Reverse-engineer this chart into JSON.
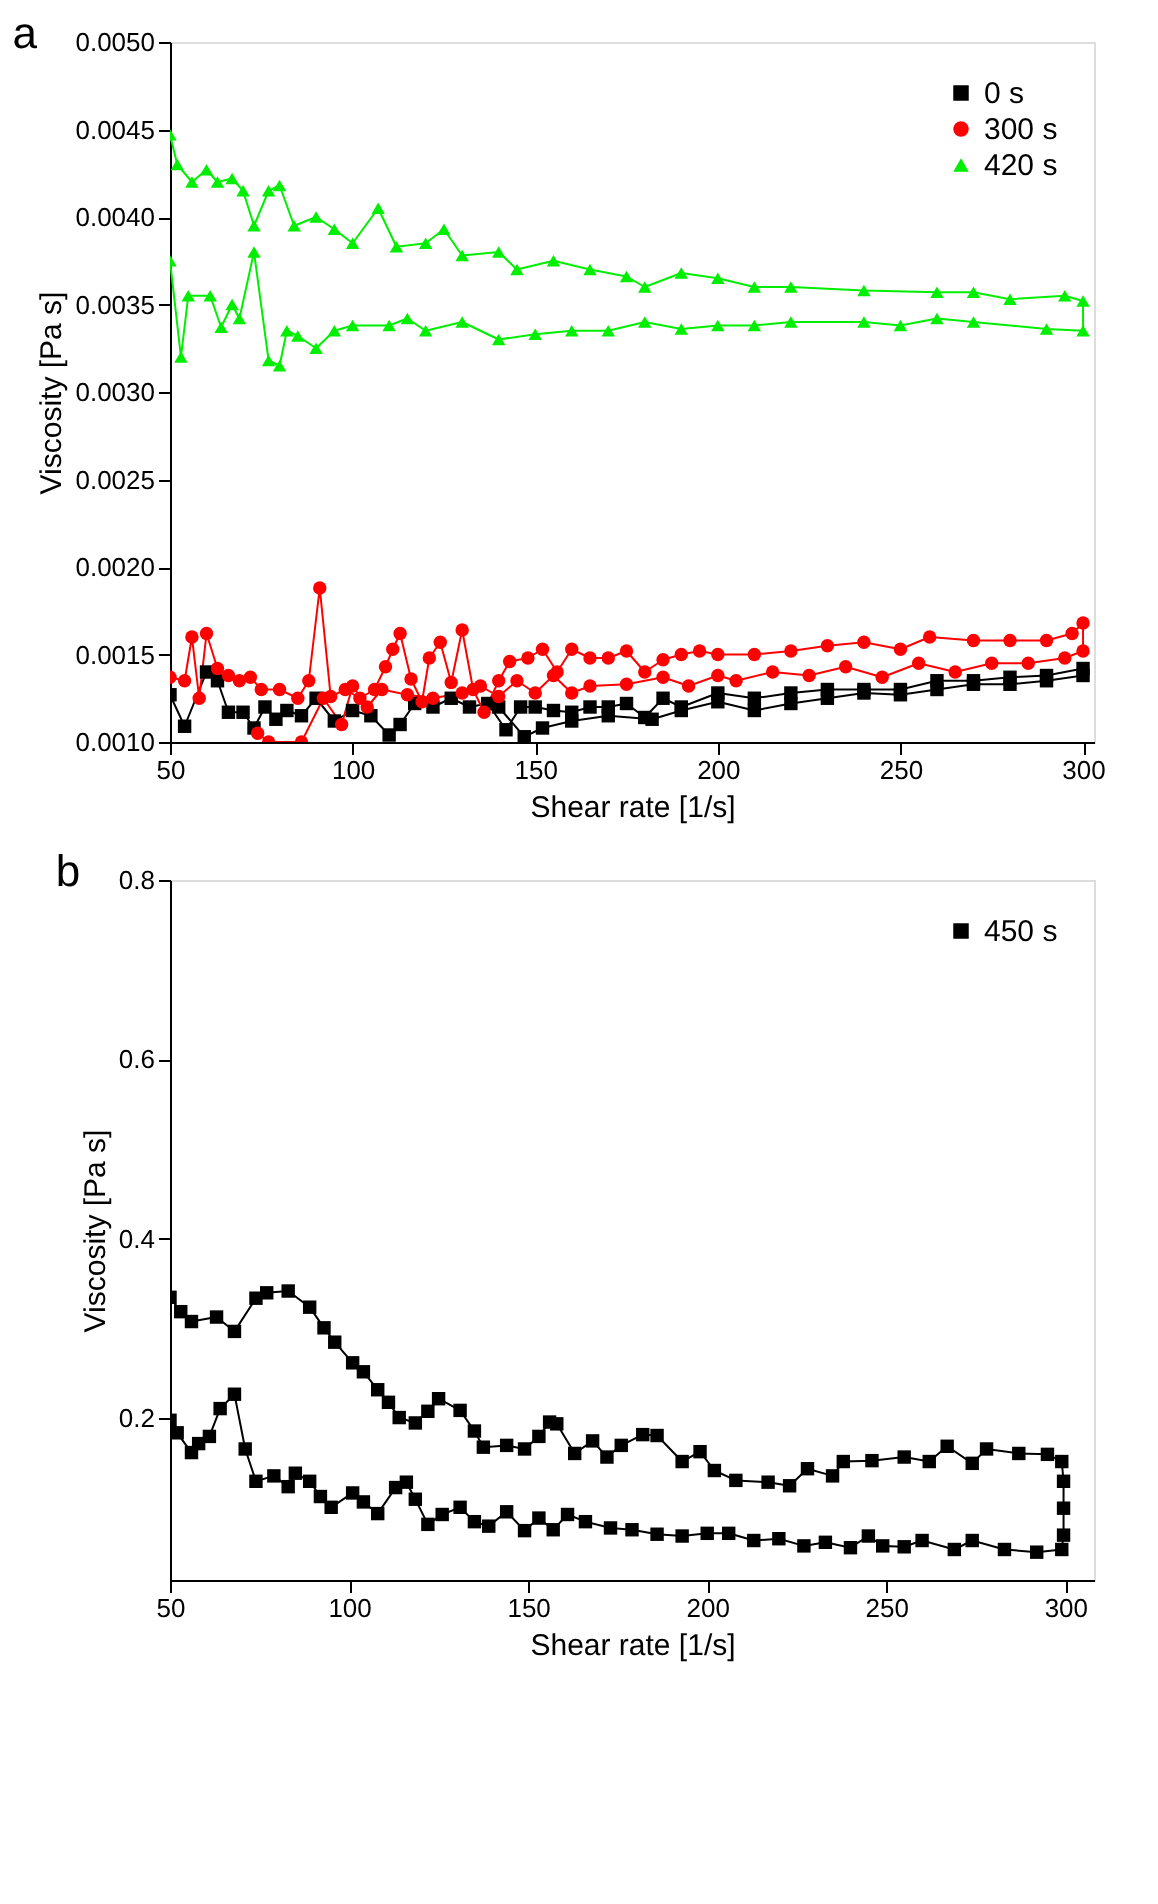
{
  "chart_data": [
    {
      "type": "line",
      "title": "a",
      "xlabel": "Shear rate [1/s]",
      "ylabel": "Viscosity [Pa s]",
      "xlim": [
        50,
        303
      ],
      "ylim": [
        0.001,
        0.005
      ],
      "xticks": [
        50,
        100,
        150,
        200,
        250,
        300
      ],
      "yticks": [
        {
          "value": 0.001,
          "label": "0.0010"
        },
        {
          "value": 0.0015,
          "label": "0.0015"
        },
        {
          "value": 0.002,
          "label": "0.0020"
        },
        {
          "value": 0.0025,
          "label": "0.0025"
        },
        {
          "value": 0.003,
          "label": "0.0030"
        },
        {
          "value": 0.0035,
          "label": "0.0035"
        },
        {
          "value": 0.004,
          "label": "0.0040"
        },
        {
          "value": 0.0045,
          "label": "0.0045"
        },
        {
          "value": 0.005,
          "label": "0.0050"
        }
      ],
      "legend": "top right",
      "grid": false,
      "line_style": "solid",
      "series": [
        {
          "name": "0 s",
          "color": "#000000",
          "marker": "square",
          "x": [
            50,
            54,
            60,
            63,
            66,
            70,
            73,
            76,
            79,
            82,
            86,
            90,
            95,
            100,
            105,
            110,
            113,
            117,
            122,
            127,
            132,
            137,
            142,
            146,
            150,
            155,
            160,
            165,
            170,
            175,
            180,
            185,
            190,
            200,
            210,
            220,
            230,
            240,
            250,
            260,
            270,
            280,
            290,
            300,
            300,
            290,
            280,
            270,
            260,
            250,
            240,
            230,
            220,
            210,
            200,
            190,
            182,
            170,
            160,
            152,
            147,
            140
          ],
          "values": [
            0.00127,
            0.00109,
            0.0014,
            0.00135,
            0.00117,
            0.00117,
            0.00108,
            0.0012,
            0.00113,
            0.00118,
            0.00115,
            0.00125,
            0.00112,
            0.00118,
            0.00115,
            0.00104,
            0.0011,
            0.00122,
            0.0012,
            0.00125,
            0.0012,
            0.00122,
            0.00107,
            0.0012,
            0.0012,
            0.00118,
            0.00117,
            0.0012,
            0.0012,
            0.00122,
            0.00114,
            0.00125,
            0.0012,
            0.00128,
            0.00125,
            0.00128,
            0.0013,
            0.0013,
            0.0013,
            0.00135,
            0.00135,
            0.00137,
            0.00138,
            0.00142,
            0.00138,
            0.00135,
            0.00133,
            0.00133,
            0.0013,
            0.00127,
            0.00128,
            0.00125,
            0.00122,
            0.00118,
            0.00123,
            0.00118,
            0.00113,
            0.00115,
            0.00112,
            0.00108,
            0.00103,
            0.0012
          ]
        },
        {
          "name": "300 s",
          "color": "#ff0000",
          "marker": "circle",
          "x": [
            50,
            54,
            56,
            58,
            60,
            63,
            66,
            69,
            72,
            75,
            80,
            85,
            88,
            91,
            94,
            98,
            102,
            106,
            109,
            111,
            113,
            116,
            119,
            121,
            124,
            127,
            130,
            133,
            136,
            140,
            143,
            148,
            152,
            156,
            160,
            165,
            170,
            175,
            180,
            185,
            190,
            195,
            200,
            210,
            220,
            230,
            240,
            250,
            258,
            270,
            280,
            290,
            297,
            300,
            300,
            295,
            285,
            275,
            265,
            255,
            245,
            235,
            225,
            215,
            205,
            200,
            192,
            185,
            175,
            165,
            160,
            155,
            150,
            145,
            140,
            135,
            130,
            122,
            115,
            108,
            104,
            100,
            97,
            92,
            86,
            77,
            74
          ],
          "values": [
            0.00137,
            0.00135,
            0.0016,
            0.00125,
            0.00162,
            0.00142,
            0.00138,
            0.00135,
            0.00137,
            0.0013,
            0.0013,
            0.00125,
            0.00135,
            0.00188,
            0.00126,
            0.0013,
            0.00125,
            0.0013,
            0.00143,
            0.00153,
            0.00162,
            0.00136,
            0.00123,
            0.00148,
            0.00157,
            0.00134,
            0.00164,
            0.0013,
            0.00117,
            0.00135,
            0.00146,
            0.00148,
            0.00153,
            0.0014,
            0.00153,
            0.00148,
            0.00148,
            0.00152,
            0.0014,
            0.00147,
            0.0015,
            0.00152,
            0.0015,
            0.0015,
            0.00152,
            0.00155,
            0.00157,
            0.00153,
            0.0016,
            0.00158,
            0.00158,
            0.00158,
            0.00162,
            0.00168,
            0.00152,
            0.00148,
            0.00145,
            0.00145,
            0.0014,
            0.00145,
            0.00137,
            0.00143,
            0.00138,
            0.0014,
            0.00135,
            0.00138,
            0.00132,
            0.00137,
            0.00133,
            0.00132,
            0.00128,
            0.00138,
            0.00128,
            0.00135,
            0.00126,
            0.00132,
            0.00128,
            0.00125,
            0.00127,
            0.0013,
            0.0012,
            0.00132,
            0.0011,
            0.00125,
            0.001,
            0.001,
            0.00105
          ]
        },
        {
          "name": "420 s",
          "color": "#00ee00",
          "marker": "triangle",
          "x": [
            50,
            52,
            56,
            60,
            63,
            67,
            70,
            73,
            77,
            80,
            84,
            90,
            95,
            100,
            107,
            112,
            120,
            125,
            130,
            140,
            145,
            155,
            165,
            175,
            180,
            190,
            200,
            210,
            220,
            240,
            260,
            270,
            280,
            295,
            300,
            300,
            290,
            270,
            260,
            250,
            240,
            220,
            210,
            200,
            190,
            180,
            170,
            160,
            150,
            140,
            130,
            120,
            115,
            110,
            100,
            95,
            90,
            85,
            82,
            80,
            77,
            73,
            69,
            67,
            64,
            61,
            55,
            53,
            50
          ],
          "values": [
            0.00447,
            0.0043,
            0.0042,
            0.00427,
            0.0042,
            0.00422,
            0.00415,
            0.00395,
            0.00415,
            0.00418,
            0.00395,
            0.004,
            0.00393,
            0.00385,
            0.00405,
            0.00383,
            0.00385,
            0.00393,
            0.00378,
            0.0038,
            0.0037,
            0.00375,
            0.0037,
            0.00366,
            0.0036,
            0.00368,
            0.00365,
            0.0036,
            0.0036,
            0.00358,
            0.00357,
            0.00357,
            0.00353,
            0.00355,
            0.00352,
            0.00335,
            0.00336,
            0.0034,
            0.00342,
            0.00338,
            0.0034,
            0.0034,
            0.00338,
            0.00338,
            0.00336,
            0.0034,
            0.00335,
            0.00335,
            0.00333,
            0.0033,
            0.0034,
            0.00335,
            0.00342,
            0.00338,
            0.00338,
            0.00335,
            0.00325,
            0.00332,
            0.00335,
            0.00315,
            0.00318,
            0.0038,
            0.00342,
            0.0035,
            0.00337,
            0.00355,
            0.00355,
            0.0032,
            0.00375
          ]
        }
      ]
    },
    {
      "type": "line",
      "title": "b",
      "xlabel": "Shear rate [1/s]",
      "ylabel": "Viscosity [Pa s]",
      "xlim": [
        50,
        308
      ],
      "ylim": [
        0.02,
        0.8
      ],
      "xticks": [
        50,
        100,
        150,
        200,
        250,
        300
      ],
      "yticks": [
        0.2,
        0.4,
        0.6,
        0.8
      ],
      "legend": "top right",
      "grid": false,
      "line_style": "solid",
      "series": [
        {
          "name": "450 s",
          "color": "#000000",
          "marker": "square",
          "x": [
            50,
            53,
            56,
            63,
            68,
            74,
            77,
            83,
            89,
            93,
            96,
            101,
            104,
            108,
            111,
            114,
            118.5,
            122,
            125,
            131,
            135,
            137.5,
            144,
            149,
            153,
            156,
            158,
            163,
            168,
            172,
            176,
            182,
            186,
            193,
            198,
            202,
            208,
            217,
            223,
            228,
            235,
            238,
            246,
            255,
            262,
            267,
            274,
            278,
            287,
            295,
            299,
            299.5,
            299.5,
            299.5,
            299,
            292,
            283,
            274,
            269,
            260,
            255,
            249,
            245,
            240,
            233,
            227,
            220,
            213,
            206,
            200,
            193,
            186,
            179,
            173,
            166,
            161,
            157,
            153,
            149,
            144,
            139,
            135,
            131,
            126,
            122,
            118.5,
            116,
            113,
            108,
            104,
            101,
            95,
            92,
            89,
            85,
            83,
            79,
            74,
            71,
            68,
            64,
            61,
            58,
            56,
            52,
            50
          ],
          "values": [
            0.335,
            0.319,
            0.308,
            0.313,
            0.297,
            0.334,
            0.34,
            0.342,
            0.324,
            0.301,
            0.285,
            0.262,
            0.252,
            0.232,
            0.218,
            0.201,
            0.195,
            0.208,
            0.222,
            0.209,
            0.186,
            0.168,
            0.17,
            0.166,
            0.18,
            0.196,
            0.194,
            0.161,
            0.175,
            0.157,
            0.17,
            0.182,
            0.181,
            0.152,
            0.163,
            0.142,
            0.131,
            0.129,
            0.125,
            0.144,
            0.136,
            0.152,
            0.153,
            0.157,
            0.152,
            0.169,
            0.15,
            0.166,
            0.161,
            0.16,
            0.152,
            0.13,
            0.1,
            0.07,
            0.054,
            0.051,
            0.054,
            0.064,
            0.054,
            0.064,
            0.057,
            0.058,
            0.069,
            0.056,
            0.062,
            0.058,
            0.066,
            0.064,
            0.072,
            0.072,
            0.069,
            0.071,
            0.076,
            0.078,
            0.085,
            0.093,
            0.076,
            0.089,
            0.075,
            0.096,
            0.08,
            0.085,
            0.101,
            0.093,
            0.082,
            0.11,
            0.129,
            0.123,
            0.094,
            0.107,
            0.117,
            0.101,
            0.113,
            0.13,
            0.139,
            0.124,
            0.136,
            0.13,
            0.166,
            0.227,
            0.211,
            0.18,
            0.172,
            0.162,
            0.184,
            0.198
          ]
        }
      ]
    }
  ]
}
